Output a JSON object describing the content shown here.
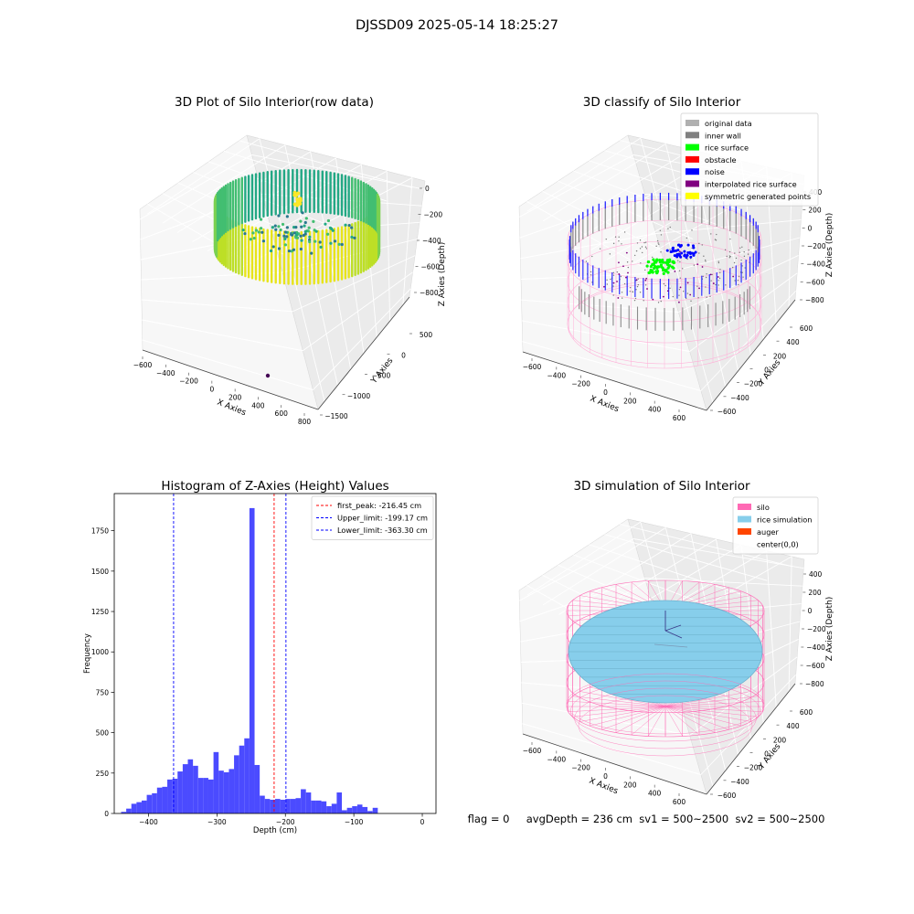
{
  "figure": {
    "suptitle": "DJSSD09 2025-05-14 18:25:27",
    "footer": "flag = 0     avgDepth = 236 cm  sv1 = 500~2500  sv2 = 500~2500"
  },
  "chart_data": [
    {
      "type": "scatter",
      "title": "3D Plot of Silo Interior(row data)",
      "xlabel": "X Axies",
      "ylabel": "Y Axies",
      "zlabel": "Z Axies (Depth)",
      "x_ticks": [
        "−600",
        "−400",
        "−200",
        "0",
        "200",
        "400",
        "600",
        "800"
      ],
      "y_ticks": [
        "−1500",
        "−1000",
        "−500",
        "0",
        "500"
      ],
      "z_ticks": [
        "−800",
        "−600",
        "−400",
        "−200",
        "0"
      ],
      "xlim": [
        -600,
        800
      ],
      "ylim": [
        -1500,
        600
      ],
      "zlim": [
        -900,
        0
      ],
      "colormap": "viridis",
      "outlier_color": "#440154"
    },
    {
      "type": "scatter",
      "title": "3D classify of Silo Interior",
      "xlabel": "X Axies",
      "ylabel": "Y Axies",
      "zlabel": "Z Axies (Depth)",
      "x_ticks": [
        "−600",
        "−400",
        "−200",
        "0",
        "200",
        "400",
        "600"
      ],
      "y_ticks": [
        "−600",
        "−400",
        "−200",
        "0",
        "200",
        "400",
        "600"
      ],
      "z_ticks": [
        "−800",
        "−600",
        "−400",
        "−200",
        "0",
        "200",
        "400"
      ],
      "legend_position": "top-right",
      "legend": [
        {
          "label": "original data",
          "color": "#b0b0b0"
        },
        {
          "label": "inner wall",
          "color": "#808080"
        },
        {
          "label": "rice surface",
          "color": "#00ff00"
        },
        {
          "label": "obstacle",
          "color": "#ff0000"
        },
        {
          "label": "noise",
          "color": "#0000ff"
        },
        {
          "label": "interpolated rice surface",
          "color": "#800080"
        },
        {
          "label": "symmetric generated points",
          "color": "#ffff00"
        }
      ],
      "cylinder_color": "#ffb0d8"
    },
    {
      "type": "bar",
      "title": "Histogram of Z-Axies (Height) Values",
      "xlabel": "Depth (cm)",
      "ylabel": "Frequency",
      "bar_color": "#4b4bff",
      "bin_start": -440,
      "bin_width": 7.5,
      "values": [
        10,
        30,
        60,
        70,
        80,
        115,
        125,
        160,
        165,
        210,
        215,
        260,
        305,
        335,
        295,
        220,
        220,
        210,
        380,
        265,
        255,
        275,
        360,
        420,
        465,
        1890,
        300,
        110,
        90,
        85,
        90,
        85,
        90,
        90,
        95,
        150,
        130,
        80,
        80,
        75,
        45,
        60,
        130,
        20,
        35,
        45,
        55,
        40,
        15,
        35
      ],
      "xlim": [
        -450,
        20
      ],
      "ylim": [
        0,
        1980
      ],
      "x_ticks": [
        "−400",
        "−300",
        "−200",
        "−100",
        "0"
      ],
      "x_tick_values": [
        -400,
        -300,
        -200,
        -100,
        0
      ],
      "y_ticks": [
        "0",
        "250",
        "500",
        "750",
        "1000",
        "1250",
        "1500",
        "1750"
      ],
      "y_tick_values": [
        0,
        250,
        500,
        750,
        1000,
        1250,
        1500,
        1750
      ],
      "lines": [
        {
          "label": "first_peak: -216.45 cm",
          "x": -216.45,
          "color": "#ff0000"
        },
        {
          "label": "Upper_limit: -199.17 cm",
          "x": -199.17,
          "color": "#0000ff"
        },
        {
          "label": "Lower_limit: -363.30 cm",
          "x": -363.3,
          "color": "#0000ff"
        }
      ],
      "legend_position": "top-right"
    },
    {
      "type": "scatter",
      "title": "3D simulation of Silo Interior",
      "xlabel": "X Axies",
      "ylabel": "Y Axies",
      "zlabel": "Z Axies (Depth)",
      "x_ticks": [
        "−600",
        "−400",
        "−200",
        "0",
        "200",
        "400",
        "600"
      ],
      "y_ticks": [
        "−600",
        "−400",
        "−200",
        "0",
        "200",
        "400",
        "600"
      ],
      "z_ticks": [
        "−800",
        "−600",
        "−400",
        "−200",
        "0",
        "200",
        "400"
      ],
      "legend_position": "top-right",
      "legend": [
        {
          "label": "silo",
          "color": "#ff69b4"
        },
        {
          "label": "rice simulation",
          "color": "#87ceeb"
        },
        {
          "label": "auger",
          "color": "#ff4500"
        },
        {
          "label": "center(0,0)",
          "color": "none"
        }
      ]
    }
  ]
}
